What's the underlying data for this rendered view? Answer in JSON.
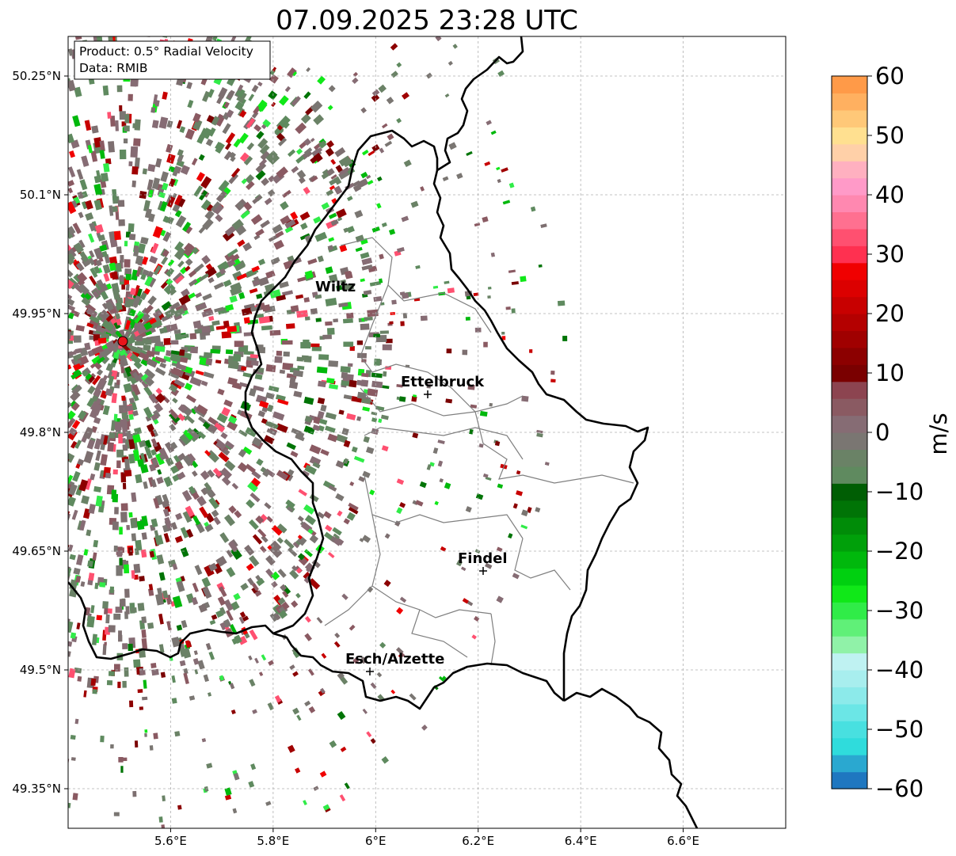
{
  "title": "07.09.2025 23:28 UTC",
  "info_box": {
    "product": "Product: 0.5° Radial Velocity",
    "source": "Data: RMIB"
  },
  "map": {
    "lon_range": [
      5.4,
      6.8
    ],
    "lat_range": [
      49.3,
      50.3
    ],
    "lon_ticks": [
      5.6,
      5.8,
      6.0,
      6.2,
      6.4,
      6.6
    ],
    "lon_tick_labels": [
      "5.6°E",
      "5.8°E",
      "6°E",
      "6.2°E",
      "6.4°E",
      "6.6°E"
    ],
    "lat_ticks": [
      50.25,
      50.1,
      49.95,
      49.8,
      49.65,
      49.5,
      49.35
    ],
    "lat_tick_labels": [
      "50.25°N",
      "50.1°N",
      "49.95°N",
      "49.8°N",
      "49.65°N",
      "49.5°N",
      "49.35°N"
    ],
    "grid": true,
    "radar_site": {
      "lon": 5.505,
      "lat": 49.915,
      "color": "#e8141a"
    },
    "cities": [
      {
        "name": "Wiltz",
        "lon": 5.93,
        "lat": 49.97
      },
      {
        "name": "Ettelbruck",
        "lon": 6.1,
        "lat": 49.85
      },
      {
        "name": "Findel",
        "lon": 6.21,
        "lat": 49.63
      },
      {
        "name": "Esch/Alzette",
        "lon": 5.99,
        "lat": 49.5
      }
    ]
  },
  "colorbar": {
    "label": "m/s",
    "min": -60,
    "max": 60,
    "tick_values": [
      60,
      50,
      40,
      30,
      20,
      10,
      0,
      -10,
      -20,
      -30,
      -40,
      -50,
      -60
    ],
    "tick_labels": [
      "60",
      "50",
      "40",
      "30",
      "20",
      "10",
      "0",
      "−10",
      "−20",
      "−30",
      "−40",
      "−50",
      "−60"
    ],
    "colors_bottom_to_top": [
      "#1f77c0",
      "#2aa8d0",
      "#2fdcdc",
      "#48e0e0",
      "#6be6e6",
      "#8ceaea",
      "#a8eeee",
      "#bff2f2",
      "#90f2a8",
      "#60f078",
      "#30ec48",
      "#10e818",
      "#00d010",
      "#00b80c",
      "#00a00a",
      "#008c08",
      "#007406",
      "#005e04",
      "#5f8a5f",
      "#6a8266",
      "#7a7672",
      "#866c74",
      "#8a5a62",
      "#8c4450",
      "#7a0000",
      "#8c0000",
      "#a00000",
      "#b40000",
      "#c80000",
      "#dc0000",
      "#f00000",
      "#ff3050",
      "#ff5070",
      "#ff7090",
      "#ff88b0",
      "#ff9ac8",
      "#ffb0c0",
      "#ffd0a8",
      "#ffe090",
      "#ffc878",
      "#ffb060",
      "#ff9a48"
    ]
  }
}
